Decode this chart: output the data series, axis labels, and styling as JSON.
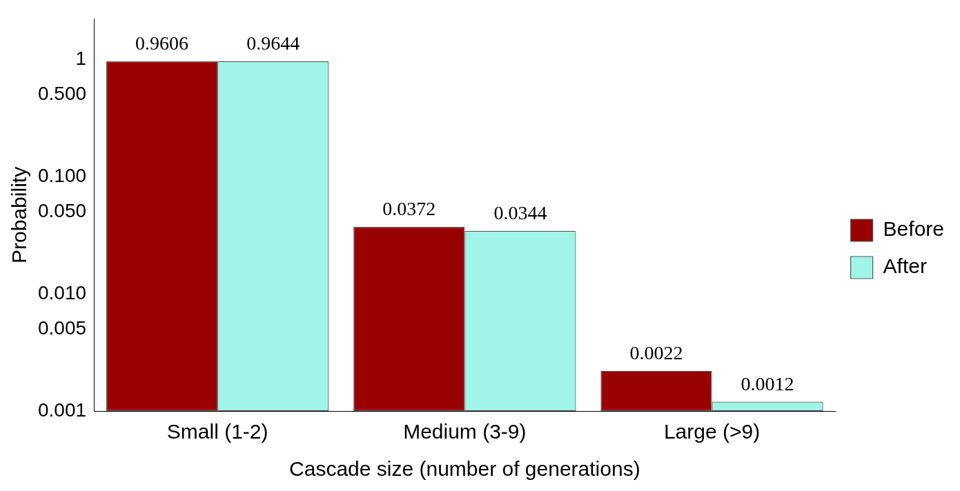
{
  "chart_data": {
    "type": "bar",
    "xlabel": "Cascade size (number of generations)",
    "ylabel": "Probability",
    "categories": [
      "Small (1-2)",
      "Medium (3-9)",
      "Large (>9)"
    ],
    "series": [
      {
        "name": "Before",
        "color": "#990000",
        "values": [
          0.9606,
          0.0372,
          0.0022
        ]
      },
      {
        "name": "After",
        "color": "#a0f5e8",
        "values": [
          0.9644,
          0.0344,
          0.0012
        ]
      }
    ],
    "log": "y",
    "ylim": [
      0.001,
      2.2
    ],
    "yticks": [
      {
        "value": 0.001,
        "label": "0.001"
      },
      {
        "value": 0.005,
        "label": "0.005"
      },
      {
        "value": 0.01,
        "label": "0.010"
      },
      {
        "value": 0.05,
        "label": "0.050"
      },
      {
        "value": 0.1,
        "label": "0.100"
      },
      {
        "value": 0.5,
        "label": "0.500"
      },
      1
    ],
    "data_labels": true,
    "legend": "right",
    "grid": false
  }
}
